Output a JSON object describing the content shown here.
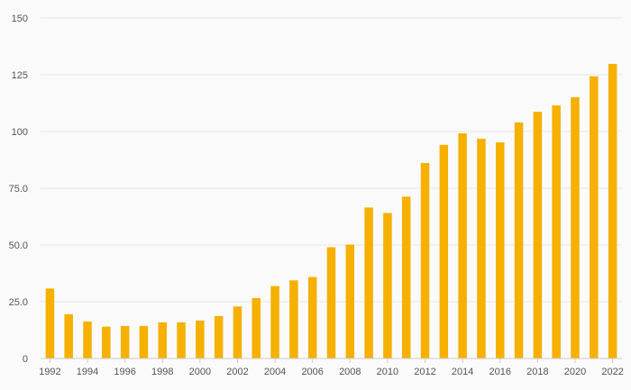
{
  "chart_data": {
    "type": "bar",
    "title": "",
    "xlabel": "",
    "ylabel": "",
    "categories": [
      "1992",
      "1993",
      "1994",
      "1995",
      "1996",
      "1997",
      "1998",
      "1999",
      "2000",
      "2001",
      "2002",
      "2003",
      "2004",
      "2005",
      "2006",
      "2007",
      "2008",
      "2009",
      "2010",
      "2011",
      "2012",
      "2013",
      "2014",
      "2015",
      "2016",
      "2017",
      "2018",
      "2019",
      "2020",
      "2021",
      "2022"
    ],
    "values": [
      30.8,
      19.5,
      16.3,
      14.0,
      14.3,
      14.3,
      15.9,
      15.9,
      16.7,
      18.7,
      22.9,
      26.6,
      31.9,
      34.4,
      35.9,
      49.0,
      50.2,
      66.5,
      64.1,
      71.3,
      86.1,
      94.1,
      99.2,
      96.8,
      95.2,
      104.0,
      108.7,
      111.5,
      115.1,
      124.3,
      129.8
    ],
    "ylim": [
      0,
      150
    ],
    "y_ticks": [
      "0",
      "25.0",
      "50.0",
      "75.0",
      "100",
      "125",
      "150"
    ],
    "y_tick_values": [
      0,
      25,
      50,
      75,
      100,
      125,
      150
    ],
    "x_tick_labels": [
      "1992",
      "1994",
      "1996",
      "1998",
      "2000",
      "2002",
      "2004",
      "2006",
      "2008",
      "2010",
      "2012",
      "2014",
      "2016",
      "2018",
      "2020",
      "2022"
    ],
    "grid": true,
    "legend": "none",
    "colors": {
      "bar": "#f5b000",
      "grid": "#e6e6e6",
      "axis": "#cccccc",
      "background": "#fafafa",
      "text": "#555555"
    }
  }
}
